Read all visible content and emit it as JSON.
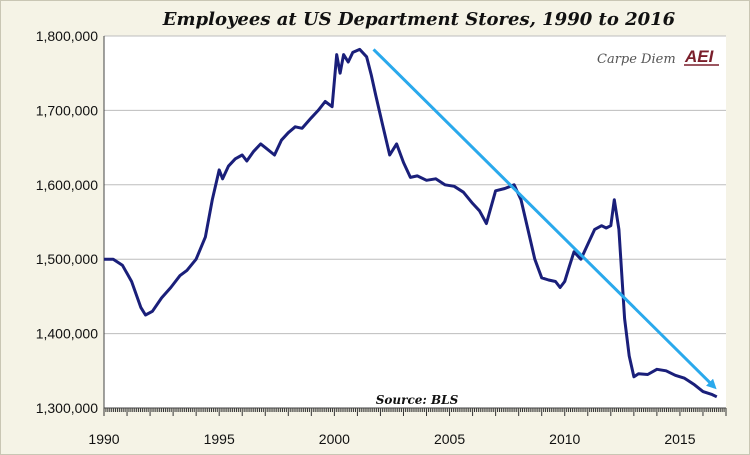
{
  "chart_data": {
    "type": "line",
    "title": "Employees at US Department Stores, 1990 to 2016",
    "source_note": "Source: BLS",
    "branding": {
      "text": "Carpe Diem",
      "logo": "AEI"
    },
    "xlim": [
      1990,
      2017
    ],
    "ylim": [
      1300000,
      1800000
    ],
    "x_ticks": [
      1990,
      1995,
      2000,
      2005,
      2010,
      2015
    ],
    "x_tick_labels": [
      "1990",
      "1995",
      "2000",
      "2005",
      "2010",
      "2015"
    ],
    "y_ticks": [
      1300000,
      1400000,
      1500000,
      1600000,
      1700000,
      1800000
    ],
    "y_tick_labels": [
      "1,300,000",
      "1,400,000",
      "1,500,000",
      "1,600,000",
      "1,700,000",
      "1,800,000"
    ],
    "grid": {
      "horizontal": true,
      "vertical": false
    },
    "colors": {
      "series": "#1a1f7a",
      "trend": "#2aa9ec",
      "grid": "#bdbdbd",
      "background": "#ffffff"
    },
    "series": [
      {
        "x": [
          1990.0,
          1990.4,
          1990.8,
          1991.2,
          1991.6,
          1991.8,
          1992.1,
          1992.5,
          1992.9,
          1993.3,
          1993.6,
          1994.0,
          1994.4,
          1994.7,
          1995.0,
          1995.15,
          1995.4,
          1995.7,
          1996.0,
          1996.2,
          1996.5,
          1996.8,
          1997.0,
          1997.4,
          1997.7,
          1998.0,
          1998.3,
          1998.6,
          1999.0,
          1999.3,
          1999.6,
          1999.9,
          2000.1,
          2000.25,
          2000.4,
          2000.6,
          2000.8,
          2001.1,
          2001.4,
          2001.6,
          2001.8,
          2002.1,
          2002.4,
          2002.7,
          2003.0,
          2003.3,
          2003.6,
          2004.0,
          2004.4,
          2004.8,
          2005.2,
          2005.6,
          2006.0,
          2006.3,
          2006.6,
          2007.0,
          2007.4,
          2007.8,
          2008.1,
          2008.4,
          2008.7,
          2009.0,
          2009.3,
          2009.6,
          2009.8,
          2010.0,
          2010.2,
          2010.4,
          2010.7,
          2011.0,
          2011.3,
          2011.6,
          2011.8,
          2012.0,
          2012.15,
          2012.35,
          2012.6,
          2012.8,
          2013.0,
          2013.2,
          2013.6,
          2014.0,
          2014.4,
          2014.8,
          2015.2,
          2015.6,
          2016.0,
          2016.4,
          2016.6
        ],
        "y": [
          1500000,
          1500000,
          1492000,
          1470000,
          1435000,
          1425000,
          1430000,
          1448000,
          1462000,
          1478000,
          1485000,
          1500000,
          1530000,
          1580000,
          1620000,
          1608000,
          1625000,
          1635000,
          1640000,
          1632000,
          1645000,
          1655000,
          1650000,
          1640000,
          1660000,
          1670000,
          1678000,
          1676000,
          1690000,
          1700000,
          1712000,
          1705000,
          1775000,
          1750000,
          1775000,
          1765000,
          1778000,
          1782000,
          1772000,
          1748000,
          1720000,
          1680000,
          1640000,
          1655000,
          1630000,
          1610000,
          1612000,
          1606000,
          1608000,
          1600000,
          1598000,
          1590000,
          1575000,
          1565000,
          1548000,
          1592000,
          1595000,
          1600000,
          1580000,
          1540000,
          1500000,
          1475000,
          1472000,
          1470000,
          1462000,
          1470000,
          1490000,
          1510000,
          1500000,
          1520000,
          1540000,
          1545000,
          1542000,
          1545000,
          1580000,
          1540000,
          1420000,
          1370000,
          1342000,
          1346000,
          1345000,
          1352000,
          1350000,
          1344000,
          1340000,
          1332000,
          1322000,
          1318000,
          1315000
        ]
      }
    ],
    "trend_arrow": {
      "x": [
        2001.7,
        2016.5
      ],
      "y": [
        1782000,
        1328000
      ]
    }
  }
}
